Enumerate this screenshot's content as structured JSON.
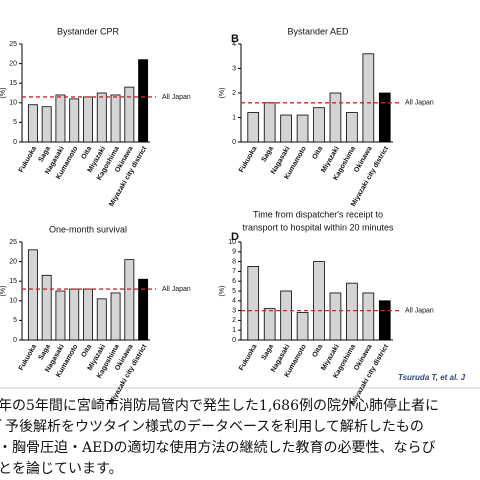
{
  "chart_data": [
    {
      "type": "bar",
      "title": [
        "Bystander CPR"
      ],
      "ylabel": "(%)",
      "categories": [
        "Fukuoka",
        "Saga",
        "Nagasaki",
        "Kumamoto",
        "Oita",
        "Miyazaki",
        "Kagoshima",
        "Okinawa",
        "Miyazaki city district"
      ],
      "values": [
        9.5,
        9,
        12,
        11,
        11.5,
        12.5,
        12,
        14,
        21
      ],
      "colors": [
        "#d4d4d4",
        "#d4d4d4",
        "#d4d4d4",
        "#d4d4d4",
        "#d4d4d4",
        "#d4d4d4",
        "#d4d4d4",
        "#d4d4d4",
        "#000000"
      ],
      "ylim": [
        0,
        25
      ],
      "yticks": [
        0,
        5,
        10,
        15,
        20,
        25
      ],
      "reference": {
        "label": "All Japan",
        "value": 11.5,
        "color": "#e02020"
      }
    },
    {
      "type": "bar",
      "letter": "B",
      "title": [
        "Bystander AED"
      ],
      "ylabel": "(%)",
      "categories": [
        "Fukuoka",
        "Saga",
        "Nagasaki",
        "Kumamoto",
        "Oita",
        "Miyazaki",
        "Kagoshima",
        "Okinawa",
        "Miyazaki city district"
      ],
      "values": [
        1.2,
        1.6,
        1.1,
        1.1,
        1.4,
        2.0,
        1.2,
        3.6,
        2.0
      ],
      "colors": [
        "#d4d4d4",
        "#d4d4d4",
        "#d4d4d4",
        "#d4d4d4",
        "#d4d4d4",
        "#d4d4d4",
        "#d4d4d4",
        "#d4d4d4",
        "#000000"
      ],
      "ylim": [
        0,
        4
      ],
      "yticks": [
        0,
        1,
        2,
        3,
        4
      ],
      "reference": {
        "label": "All Japan",
        "value": 1.6,
        "color": "#e02020"
      }
    },
    {
      "type": "bar",
      "title": [
        "One-month survival"
      ],
      "ylabel": "(%)",
      "categories": [
        "Fukuoka",
        "Saga",
        "Nagasaki",
        "Kumamoto",
        "Oita",
        "Miyazaki",
        "Kagoshima",
        "Okinawa",
        "Miyazaki city district"
      ],
      "values": [
        23,
        16.5,
        12.5,
        13,
        13,
        10.5,
        12,
        20.5,
        15.5
      ],
      "colors": [
        "#d4d4d4",
        "#d4d4d4",
        "#d4d4d4",
        "#d4d4d4",
        "#d4d4d4",
        "#d4d4d4",
        "#d4d4d4",
        "#d4d4d4",
        "#000000"
      ],
      "ylim": [
        0,
        25
      ],
      "yticks": [
        0,
        5,
        10,
        15,
        20,
        25
      ],
      "reference": {
        "label": "All Japan",
        "value": 13,
        "color": "#e02020"
      }
    },
    {
      "type": "bar",
      "letter": "D",
      "title": [
        "Time from  dispatcher's receipt to",
        "transport to hospital within 20 minutes"
      ],
      "ylabel": "(%)",
      "categories": [
        "Fukuoka",
        "Saga",
        "Nagasaki",
        "Kumamoto",
        "Oita",
        "Miyazaki",
        "Kagoshima",
        "Okinawa",
        "Miyazaki city district"
      ],
      "values": [
        7.5,
        3.2,
        5,
        2.8,
        8,
        4.8,
        5.8,
        4.8,
        4
      ],
      "colors": [
        "#d4d4d4",
        "#d4d4d4",
        "#d4d4d4",
        "#d4d4d4",
        "#d4d4d4",
        "#d4d4d4",
        "#d4d4d4",
        "#d4d4d4",
        "#000000"
      ],
      "ylim": [
        0,
        10
      ],
      "yticks": [
        0,
        1,
        2,
        3,
        4,
        5,
        6,
        7,
        8,
        9,
        10
      ],
      "reference": {
        "label": "All Japan",
        "value": 3,
        "color": "#e02020"
      }
    }
  ],
  "citation": "Tsuruda T, et al. J",
  "text_lines": [
    "年の5年間に宮崎市消防局管内で発生した1,686例の院外心肺停止者に",
    "ﾞ予後解析をウツタイン様式のデータベースを利用して解析したもの",
    "・胸骨圧迫・AEDの適切な使用方法の継続した教育の必要性、ならび",
    "とを論じています。"
  ]
}
